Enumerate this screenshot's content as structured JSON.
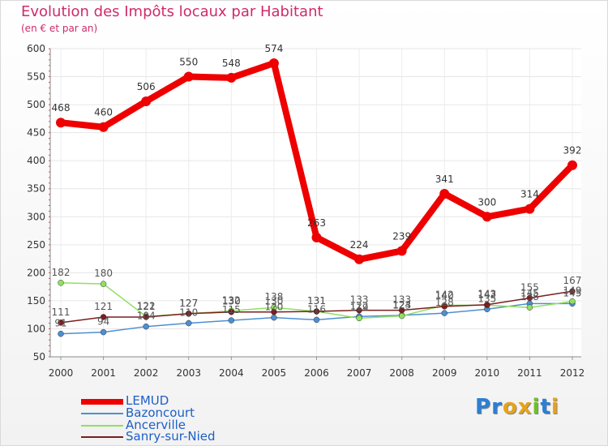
{
  "header": {
    "title": "Evolution des Impôts locaux par Habitant",
    "subtitle": "(en € et par an)"
  },
  "brand": {
    "name": "Proxiti",
    "letters": [
      "P",
      "r",
      "o",
      "x",
      "i",
      "t",
      "i"
    ],
    "colors": [
      "#2b7fd4",
      "#2b7fd4",
      "#e6a31a",
      "#e6a31a",
      "#6fbf2a",
      "#2b7fd4",
      "#e6a31a"
    ]
  },
  "chart_data": {
    "type": "line",
    "categories": [
      "2000",
      "2001",
      "2002",
      "2003",
      "2004",
      "2005",
      "2006",
      "2007",
      "2008",
      "2009",
      "2010",
      "2011",
      "2012"
    ],
    "ylim": [
      50,
      600
    ],
    "yticks": [
      50,
      100,
      150,
      200,
      250,
      300,
      350,
      400,
      450,
      500,
      550,
      600
    ],
    "title": "Evolution des Impôts locaux par Habitant",
    "ylabel": "(en € et par an)",
    "xlabel": "",
    "legend_position": "bottom-left",
    "series": [
      {
        "name": "LEMUD",
        "color": "#ee0000",
        "labelColor": "#333333",
        "values": [
          468,
          460,
          506,
          550,
          548,
          574,
          263,
          224,
          239,
          341,
          300,
          314,
          392
        ]
      },
      {
        "name": "Bazoncourt",
        "color": "#4d8fd1",
        "labelColor": "#555555",
        "values": [
          91,
          94,
          104,
          110,
          115,
          120,
          116,
          122,
          124,
          128,
          135,
          145,
          145
        ]
      },
      {
        "name": "Ancerville",
        "color": "#90e060",
        "labelColor": "#555555",
        "values": [
          182,
          180,
          122,
          127,
          132,
          138,
          131,
          119,
          123,
          142,
          142,
          138,
          149
        ]
      },
      {
        "name": "Sanry-sur-Nied",
        "color": "#7b1e1e",
        "labelColor": "#555555",
        "values": [
          111,
          121,
          121,
          127,
          130,
          130,
          131,
          133,
          133,
          140,
          143,
          155,
          167
        ]
      }
    ]
  }
}
